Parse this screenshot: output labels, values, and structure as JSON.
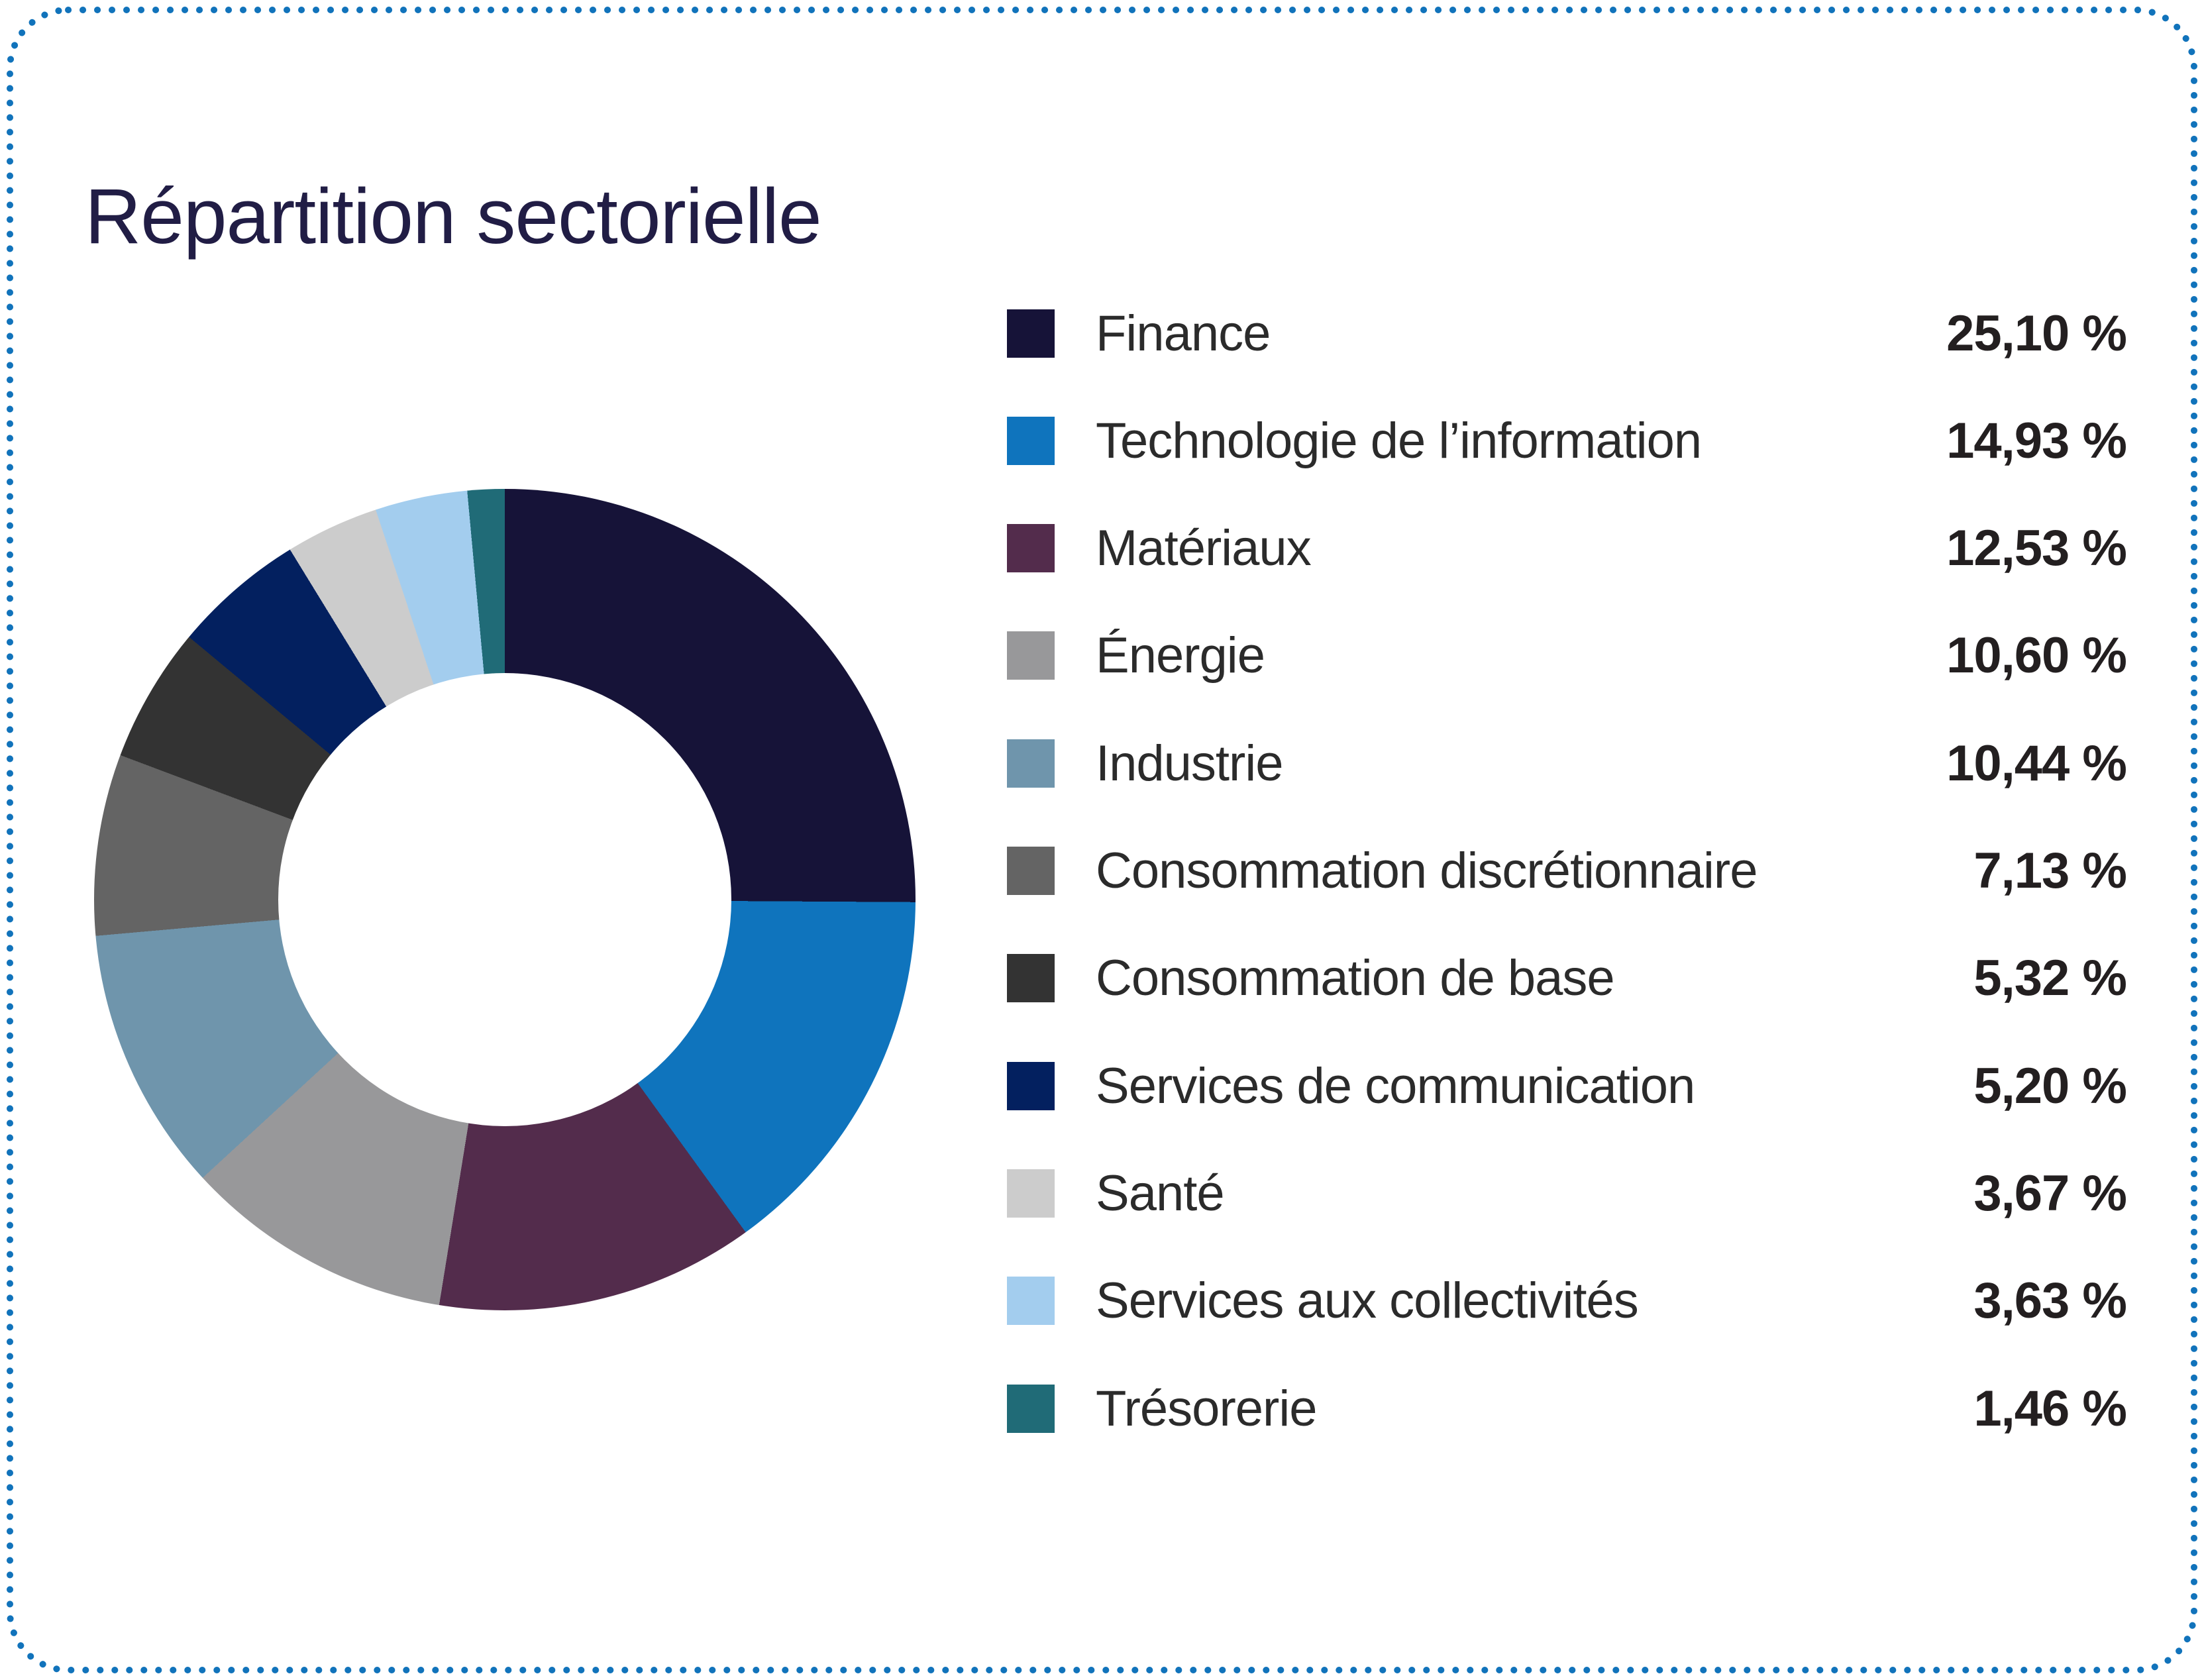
{
  "header": {
    "title": "Répartition sectorielle"
  },
  "style": {
    "border_color": "#1173bb",
    "title_color": "#211d45",
    "label_color": "#2b2b2b",
    "value_color": "#231f20",
    "background_color": "#ffffff"
  },
  "chart_data": {
    "type": "pie",
    "subtype": "donut",
    "title": "Répartition sectorielle",
    "categories": [
      "Finance",
      "Technologie de l’information",
      "Matériaux",
      "Énergie",
      "Industrie",
      "Consommation discrétionnaire",
      "Consommation de base",
      "Services de communication",
      "Santé",
      "Services aux collectivités",
      "Trésorerie"
    ],
    "values": [
      25.1,
      14.93,
      12.53,
      10.6,
      10.44,
      7.13,
      5.32,
      5.2,
      3.67,
      3.63,
      1.46
    ],
    "display_values": [
      "25,10 %",
      "14,93 %",
      "12,53 %",
      "10,60 %",
      "10,44 %",
      "7,13 %",
      "5,32 %",
      "5,20 %",
      "3,67 %",
      "3,63 %",
      "1,46 %"
    ],
    "colors": [
      "#161338",
      "#0f74bd",
      "#532c4c",
      "#98989a",
      "#6f95ac",
      "#646464",
      "#333333",
      "#03205f",
      "#cccccc",
      "#a3cdee",
      "#206b77"
    ],
    "start_angle_deg": 0,
    "direction": "clockwise",
    "inner_radius_ratio": 0.55,
    "legend_position": "right",
    "grid": false
  }
}
